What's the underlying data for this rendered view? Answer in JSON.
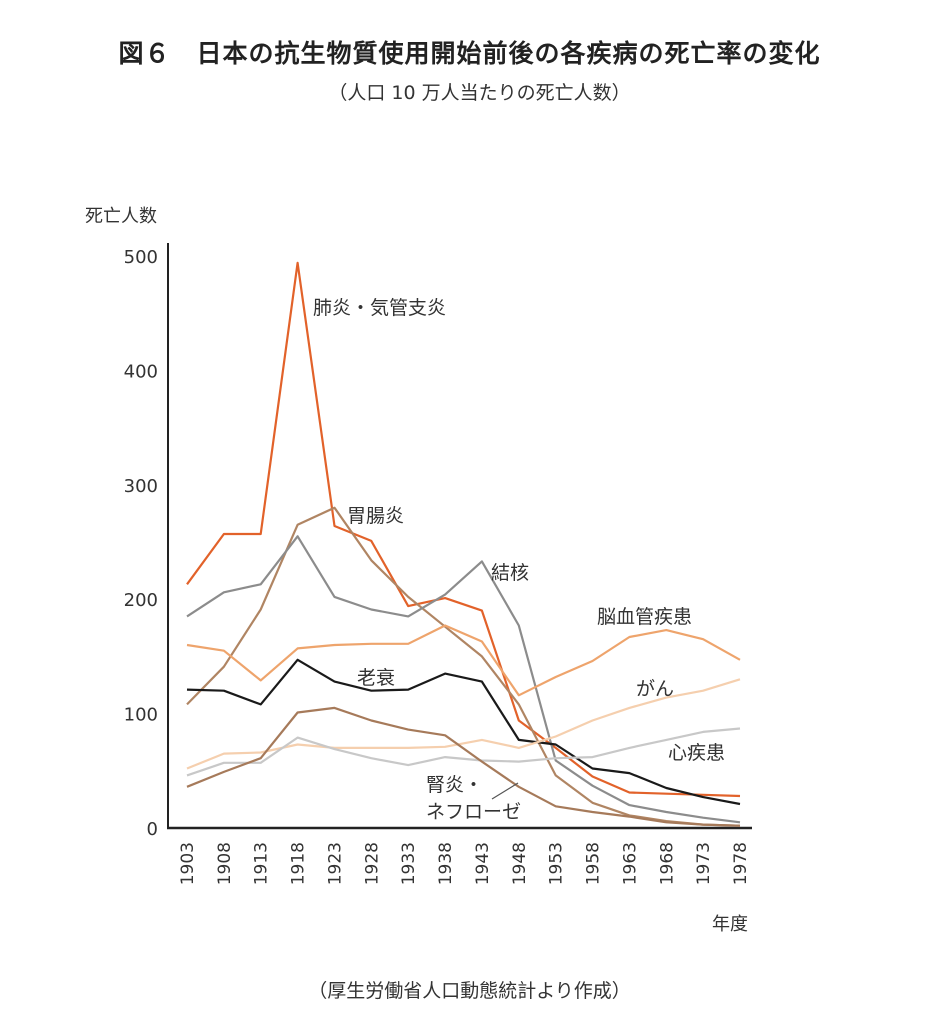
{
  "title": "図６　日本の抗生物質使用開始前後の各疾病の死亡率の変化",
  "subtitle": "（人口 10 万人当たりの死亡人数）",
  "source": "（厚生労働省人口動態統計より作成）",
  "chart_data": {
    "type": "line",
    "title": "図６　日本の抗生物質使用開始前後の各疾病の死亡率の変化",
    "ylabel": "死亡人数",
    "xlabel": "年度",
    "ylim": [
      0,
      500
    ],
    "yticks": [
      0,
      100,
      200,
      300,
      400,
      500
    ],
    "x": [
      "1903",
      "1908",
      "1913",
      "1918",
      "1923",
      "1928",
      "1933",
      "1938",
      "1943",
      "1948",
      "1953",
      "1958",
      "1963",
      "1968",
      "1973",
      "1978"
    ],
    "grid": false,
    "series": [
      {
        "name": "肺炎・気管支炎",
        "color": "#e2622a",
        "values": [
          213,
          257,
          257,
          494,
          264,
          251,
          194,
          201,
          190,
          94,
          70,
          45,
          31,
          30,
          29,
          28
        ]
      },
      {
        "name": "胃腸炎",
        "color": "#b08563",
        "values": [
          108,
          141,
          191,
          265,
          280,
          234,
          202,
          176,
          150,
          108,
          46,
          22,
          11,
          6,
          3,
          2
        ]
      },
      {
        "name": "結核",
        "color": "#8c8c8c",
        "values": [
          185,
          206,
          213,
          255,
          202,
          191,
          185,
          204,
          233,
          177,
          59,
          37,
          20,
          14,
          9,
          5
        ]
      },
      {
        "name": "脳血管疾患",
        "color": "#eea46c",
        "values": [
          160,
          155,
          129,
          157,
          160,
          161,
          161,
          177,
          163,
          116,
          132,
          146,
          167,
          173,
          165,
          147
        ]
      },
      {
        "name": "老衰",
        "color": "#1a1a1a",
        "values": [
          121,
          120,
          108,
          147,
          128,
          120,
          121,
          135,
          128,
          77,
          73,
          52,
          48,
          35,
          27,
          21
        ]
      },
      {
        "name": "がん",
        "color": "#f5cfae",
        "values": [
          52,
          65,
          66,
          73,
          70,
          70,
          70,
          71,
          77,
          70,
          80,
          94,
          105,
          114,
          120,
          130
        ]
      },
      {
        "name": "心疾患",
        "color": "#c8c8c8",
        "values": [
          46,
          57,
          57,
          79,
          69,
          61,
          55,
          62,
          59,
          58,
          61,
          62,
          70,
          77,
          84,
          87
        ]
      },
      {
        "name": "腎炎・ネフローゼ",
        "name_lines": [
          "腎炎・",
          "ネフローゼ"
        ],
        "color": "#a67a5a",
        "values": [
          36,
          49,
          61,
          101,
          105,
          94,
          86,
          81,
          58,
          36,
          19,
          14,
          10,
          5,
          3,
          2
        ]
      }
    ]
  }
}
